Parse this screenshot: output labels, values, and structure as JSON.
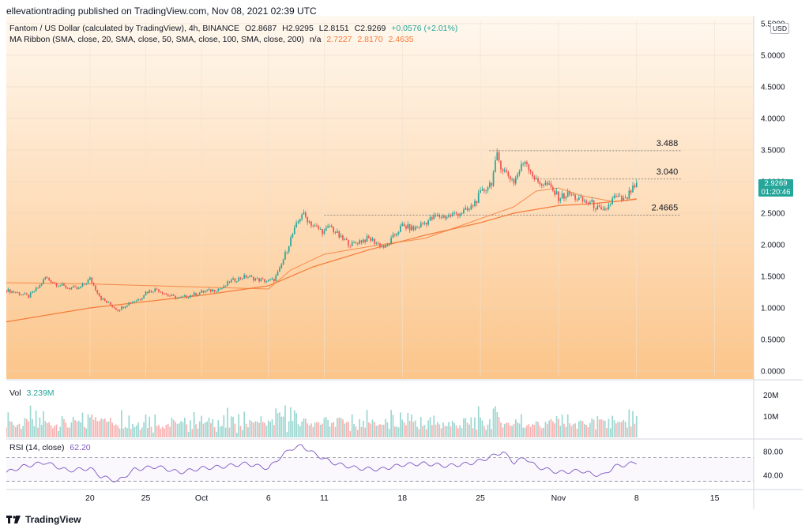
{
  "publisher_line": "ellevationtrading published on TradingView.com, Nov 08, 2021 02:39 UTC",
  "legend": {
    "symbol": "Fantom / US Dollar (calculated by TradingView), 4h, BINANCE",
    "o": "O2.8687",
    "h": "H2.9295",
    "l": "L2.8151",
    "c": "C2.9269",
    "change": "+0.0576 (+2.01%)",
    "ma_label": "MA Ribbon (SMA, close, 20, SMA, close, 50, SMA, close, 100, SMA, close, 200)",
    "ma_na": "n/a",
    "ma_values": [
      "2.7227",
      "2.8170",
      "2.4635"
    ]
  },
  "currency": "USD",
  "last_price": {
    "value": "2.9269",
    "countdown": "01:20:46"
  },
  "vol_legend": {
    "label": "Vol",
    "value": "3.239M"
  },
  "rsi_legend": {
    "label": "RSI (14, close)",
    "value": "62.20"
  },
  "footer_brand": "TradingView",
  "colors": {
    "up": "#26a69a",
    "down": "#ef5350",
    "ma": "#f57c3b",
    "rsi": "#7e57c2",
    "bg_top": "#fff8ef",
    "bg_bottom": "#fcc58a"
  },
  "chart_data": {
    "type": "candlestick",
    "price_axis": {
      "ticks": [
        5.5,
        5.0,
        4.5,
        4.0,
        3.5,
        3.0,
        2.5,
        2.0,
        1.5,
        1.0,
        0.5,
        0.0
      ],
      "tick_labels": [
        "5.5000",
        "5.0000",
        "4.5000",
        "4.0000",
        "3.5000",
        "3.0000",
        "2.5000",
        "2.0000",
        "1.5000",
        "1.0000",
        "0.5000",
        "0.0000"
      ],
      "ylim": [
        -0.1,
        5.55
      ]
    },
    "x_axis": {
      "labels": [
        "20",
        "25",
        "Oct",
        "6",
        "11",
        "18",
        "25",
        "Nov",
        "8",
        "15"
      ],
      "label_days": [
        20,
        25,
        30,
        36,
        41,
        48,
        55,
        62,
        69,
        76
      ],
      "start_day": 12.5,
      "end_day": 79.5,
      "data_end_day": 69
    },
    "levels": [
      {
        "label": "3.488",
        "value": 3.488,
        "from_day": 55.8,
        "to_day": 73
      },
      {
        "label": "3.040",
        "value": 3.04,
        "from_day": 59.8,
        "to_day": 73
      },
      {
        "label": "2.4665",
        "value": 2.4665,
        "from_day": 41,
        "to_day": 73
      }
    ],
    "price_path": [
      [
        12.5,
        1.28
      ],
      [
        13.5,
        1.24
      ],
      [
        14.5,
        1.18
      ],
      [
        15.5,
        1.35
      ],
      [
        16,
        1.48
      ],
      [
        17,
        1.38
      ],
      [
        18,
        1.32
      ],
      [
        19,
        1.3
      ],
      [
        20,
        1.46
      ],
      [
        21,
        1.15
      ],
      [
        22.5,
        0.97
      ],
      [
        23.5,
        1.08
      ],
      [
        24.5,
        1.15
      ],
      [
        25,
        1.25
      ],
      [
        26,
        1.3
      ],
      [
        27,
        1.2
      ],
      [
        28,
        1.15
      ],
      [
        29,
        1.2
      ],
      [
        30,
        1.25
      ],
      [
        31,
        1.28
      ],
      [
        32,
        1.32
      ],
      [
        32.5,
        1.42
      ],
      [
        34,
        1.5
      ],
      [
        35,
        1.45
      ],
      [
        36,
        1.42
      ],
      [
        36.5,
        1.45
      ],
      [
        37,
        1.6
      ],
      [
        38,
        2.1
      ],
      [
        39,
        2.5
      ],
      [
        40,
        2.3
      ],
      [
        41,
        2.2
      ],
      [
        41.5,
        2.3
      ],
      [
        42.5,
        2.1
      ],
      [
        43.5,
        2.0
      ],
      [
        44,
        2.05
      ],
      [
        45,
        2.1
      ],
      [
        46,
        2.0
      ],
      [
        46.5,
        1.95
      ],
      [
        47.5,
        2.2
      ],
      [
        48,
        2.3
      ],
      [
        49,
        2.25
      ],
      [
        50,
        2.35
      ],
      [
        51,
        2.45
      ],
      [
        52,
        2.45
      ],
      [
        53,
        2.5
      ],
      [
        54,
        2.55
      ],
      [
        55,
        2.8
      ],
      [
        56,
        3.0
      ],
      [
        56.5,
        3.4
      ],
      [
        57,
        3.2
      ],
      [
        58,
        3.0
      ],
      [
        59,
        3.35
      ],
      [
        60,
        3.0
      ],
      [
        61,
        2.95
      ],
      [
        62,
        2.75
      ],
      [
        63,
        2.8
      ],
      [
        64,
        2.7
      ],
      [
        65,
        2.65
      ],
      [
        66,
        2.5
      ],
      [
        67,
        2.75
      ],
      [
        68,
        2.7
      ],
      [
        68.5,
        2.85
      ],
      [
        69,
        2.93
      ]
    ],
    "ma_path": [
      [
        12.5,
        0.78
      ],
      [
        20,
        1.0
      ],
      [
        30,
        1.2
      ],
      [
        36,
        1.35
      ],
      [
        40,
        1.65
      ],
      [
        45,
        1.92
      ],
      [
        50,
        2.15
      ],
      [
        55,
        2.35
      ],
      [
        58,
        2.5
      ],
      [
        62,
        2.62
      ],
      [
        65,
        2.65
      ],
      [
        69,
        2.72
      ]
    ],
    "ma200_path": [
      [
        12.5,
        1.4
      ],
      [
        20,
        1.38
      ],
      [
        30,
        1.33
      ],
      [
        36,
        1.3
      ],
      [
        38,
        1.6
      ],
      [
        41,
        1.85
      ],
      [
        46,
        2.0
      ],
      [
        50,
        2.1
      ],
      [
        54,
        2.35
      ],
      [
        58,
        2.6
      ],
      [
        60,
        2.85
      ],
      [
        62,
        2.9
      ],
      [
        64,
        2.78
      ],
      [
        67,
        2.68
      ],
      [
        69,
        2.73
      ]
    ],
    "volume": {
      "axis_labels": [
        "20M",
        "10M"
      ],
      "ticks": [
        20,
        10
      ],
      "ylim": [
        0,
        24
      ],
      "unit": "M"
    },
    "rsi": {
      "axis_labels": [
        "80.00",
        "40.00"
      ],
      "ticks": [
        80,
        40
      ],
      "upper_band": 70,
      "lower_band": 30,
      "ylim": [
        20,
        95
      ],
      "path": [
        [
          12.5,
          45
        ],
        [
          14,
          55
        ],
        [
          16,
          62
        ],
        [
          18,
          48
        ],
        [
          20,
          52
        ],
        [
          21,
          38
        ],
        [
          22.5,
          30
        ],
        [
          24,
          50
        ],
        [
          26,
          55
        ],
        [
          28,
          45
        ],
        [
          30,
          52
        ],
        [
          32,
          55
        ],
        [
          34,
          60
        ],
        [
          36,
          52
        ],
        [
          37,
          70
        ],
        [
          38,
          85
        ],
        [
          39,
          90
        ],
        [
          40,
          78
        ],
        [
          41,
          68
        ],
        [
          42,
          60
        ],
        [
          44,
          52
        ],
        [
          46,
          50
        ],
        [
          48,
          58
        ],
        [
          50,
          60
        ],
        [
          52,
          56
        ],
        [
          54,
          60
        ],
        [
          55,
          65
        ],
        [
          56,
          72
        ],
        [
          57,
          80
        ],
        [
          58,
          62
        ],
        [
          59,
          70
        ],
        [
          60,
          55
        ],
        [
          62,
          45
        ],
        [
          64,
          48
        ],
        [
          65,
          42
        ],
        [
          66,
          40
        ],
        [
          67,
          55
        ],
        [
          68,
          58
        ],
        [
          69,
          62.2
        ]
      ]
    }
  }
}
